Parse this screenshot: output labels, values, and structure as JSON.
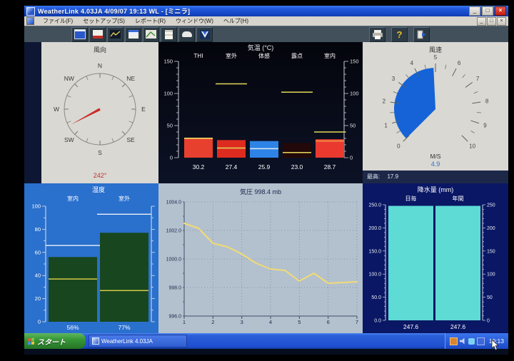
{
  "window": {
    "title": "WeatherLink 4.03JA    4/09/07  19:13  WL - [ミニラ]",
    "controls": {
      "minimize": "_",
      "restore": "□",
      "close": "×"
    },
    "child_controls": {
      "minimize": "_",
      "restore": "□",
      "close": "×"
    }
  },
  "menu_bar": {
    "items": [
      "ファイル(F)",
      "セットアップ(S)",
      "レポート(R)",
      "ウィンドウ(W)",
      "ヘルプ(H)"
    ]
  },
  "toolbar": {
    "help_glyph": "?",
    "left_icons": [
      "bulletin",
      "summary",
      "graph",
      "strip-chart",
      "plot",
      "report",
      "browse",
      "download"
    ],
    "right_icons": [
      "print",
      "help",
      "exit"
    ]
  },
  "panels": {
    "wind_direction": {
      "title": "風向",
      "compass_labels": [
        "N",
        "NE",
        "E",
        "SE",
        "S",
        "SW",
        "W",
        "NW"
      ],
      "degrees": 242,
      "display": "242°"
    },
    "temperature": {
      "title": "気温 (°C)",
      "axis_labels": [
        "150",
        "100",
        "50",
        "0"
      ],
      "axis_values": [
        150,
        100,
        50,
        0
      ],
      "axis_max": 150,
      "dash_color": "#d8cc55",
      "columns": [
        {
          "label": "THI",
          "value": "30.2",
          "bar": 30.2,
          "color": "#e8402e",
          "marker": 30.2,
          "marker_color": "#eee066",
          "dash": null
        },
        {
          "label": "室外",
          "value": "27.4",
          "bar": 27.4,
          "color": "#de2b20",
          "marker": 15,
          "marker_color": "#e0d055",
          "dash": 115
        },
        {
          "label": "体感",
          "value": "25.9",
          "bar": 25.9,
          "color": "#2e84e6",
          "marker": 14,
          "marker_color": "#d5e4f2",
          "dash": null
        },
        {
          "label": "露点",
          "value": "23.0",
          "bar": 23.0,
          "color": "#220808",
          "marker": 8,
          "marker_color": "#e0d055",
          "dash": 102
        },
        {
          "label": "室内",
          "value": "28.7",
          "bar": 28.7,
          "color": "#ea3a30",
          "marker": 26,
          "marker_color": "#f09a42",
          "dash": 40
        }
      ]
    },
    "wind_speed": {
      "title": "風速",
      "unit": "M/S",
      "value": 4.9,
      "display": "4.9",
      "min": 0,
      "max": 10,
      "tick_labels": [
        "0",
        "1",
        "2",
        "3",
        "4",
        "5",
        "6",
        "7",
        "8",
        "9",
        "10"
      ],
      "footer_label": "最高:",
      "footer_value": "17.9"
    },
    "humidity": {
      "title": "湿度",
      "axis_labels": [
        "100",
        "80",
        "60",
        "40",
        "20",
        "0"
      ],
      "axis_values": [
        100,
        80,
        60,
        40,
        20,
        0
      ],
      "axis_max": 100,
      "columns": [
        {
          "label": "室内",
          "value": "56%",
          "bar": 56,
          "high": 66,
          "marker": 37
        },
        {
          "label": "室外",
          "value": "77%",
          "bar": 77,
          "high": 93,
          "marker": 27
        }
      ]
    },
    "pressure": {
      "title": "気圧",
      "current": "998.4 mb",
      "y_labels": [
        "1004.0",
        "1002.0",
        "1000.0",
        "998.0",
        "996.0"
      ],
      "y_values": [
        1004,
        1002,
        1000,
        998,
        996
      ],
      "x_labels": [
        "1",
        "2",
        "3",
        "4",
        "5",
        "6",
        "7"
      ],
      "ylim": [
        996,
        1004
      ],
      "xlim": [
        1,
        7
      ],
      "points": [
        [
          1,
          1002.5
        ],
        [
          1.5,
          1002.15
        ],
        [
          2,
          1001.1
        ],
        [
          2.5,
          1000.85
        ],
        [
          3,
          1000.35
        ],
        [
          3.5,
          999.7
        ],
        [
          4,
          999.3
        ],
        [
          4.5,
          999.2
        ],
        [
          5,
          998.45
        ],
        [
          5.5,
          999.0
        ],
        [
          6,
          998.3
        ],
        [
          6.5,
          998.35
        ],
        [
          7,
          998.4
        ]
      ]
    },
    "rain": {
      "title": "降水量 (mm)",
      "left_labels": [
        "250.0",
        "200.0",
        "150.0",
        "100.0",
        "50.0",
        "0.0"
      ],
      "right_labels": [
        "250",
        "200",
        "150",
        "100",
        "50",
        "0"
      ],
      "axis_values": [
        250,
        200,
        150,
        100,
        50,
        0
      ],
      "axis_max": 250,
      "columns": [
        {
          "label": "日毎",
          "value": "247.6",
          "bar": 247.6
        },
        {
          "label": "年間",
          "value": "247.6",
          "bar": 247.6
        }
      ]
    }
  },
  "taskbar": {
    "start_label": "スタート",
    "task_label": "WeatherLink 4.03JA",
    "clock": "19:13"
  },
  "colors": {
    "accent_blue": "#1563d6",
    "needle_red": "#c92a22",
    "bar_green": "#18471f",
    "bar_cyan": "#5edbd5",
    "line_yellow": "#f2da74"
  },
  "chart_data": [
    {
      "type": "line",
      "title": "気圧 998.4 mb",
      "ylabel": "mb",
      "x": [
        1,
        1.5,
        2,
        2.5,
        3,
        3.5,
        4,
        4.5,
        5,
        5.5,
        6,
        6.5,
        7
      ],
      "y": [
        1002.5,
        1002.15,
        1001.1,
        1000.85,
        1000.35,
        999.7,
        999.3,
        999.2,
        998.45,
        999.0,
        998.3,
        998.35,
        998.4
      ],
      "ylim": [
        996,
        1004
      ],
      "xlim": [
        1,
        7
      ]
    },
    {
      "type": "bar",
      "title": "気温 (°C)",
      "categories": [
        "THI",
        "室外",
        "体感",
        "露点",
        "室内"
      ],
      "values": [
        30.2,
        27.4,
        25.9,
        23.0,
        28.7
      ],
      "ylim": [
        0,
        150
      ]
    },
    {
      "type": "bar",
      "title": "湿度",
      "categories": [
        "室内",
        "室外"
      ],
      "values": [
        56,
        77
      ],
      "ylim": [
        0,
        100
      ]
    },
    {
      "type": "bar",
      "title": "降水量 (mm)",
      "categories": [
        "日毎",
        "年間"
      ],
      "values": [
        247.6,
        247.6
      ],
      "ylim": [
        0,
        250
      ]
    },
    {
      "type": "gauge",
      "title": "風速 M/S",
      "value": 4.9,
      "range": [
        0,
        10
      ],
      "max_today": 17.9
    },
    {
      "type": "gauge",
      "title": "風向",
      "value": 242,
      "unit": "°"
    }
  ]
}
